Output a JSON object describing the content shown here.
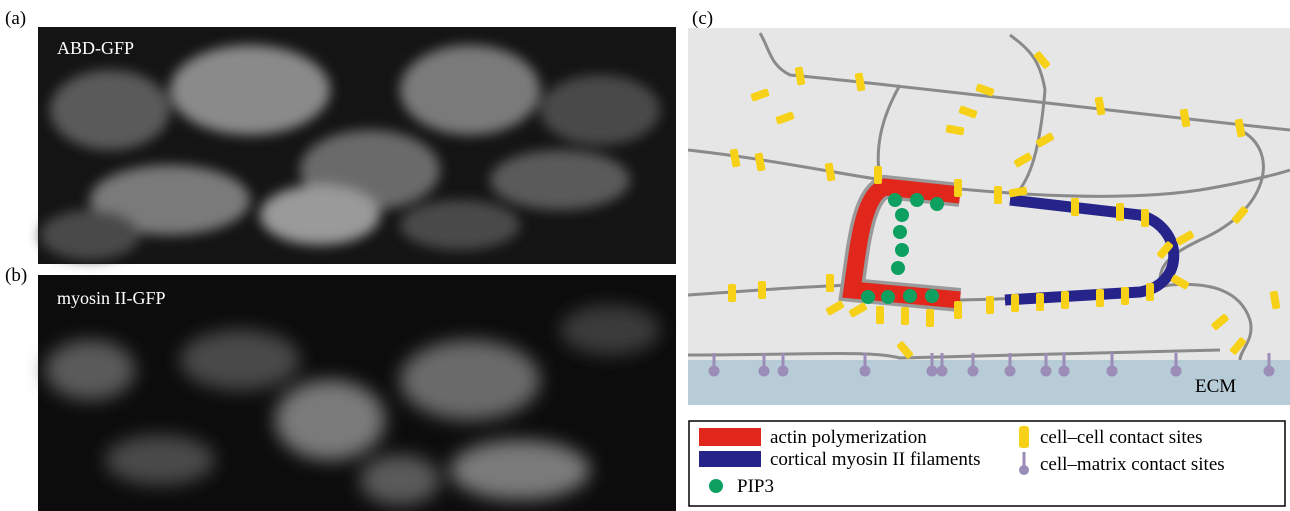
{
  "panels": [
    {
      "label": "(a)",
      "image_label": "ABD-GFP"
    },
    {
      "label": "(b)",
      "image_label": "myosin II-GFP"
    },
    {
      "label": "(c)",
      "ecm_label": "ECM",
      "legend": [
        "actin polymerization",
        "cortical myosin II filaments",
        "PIP3",
        "cell–cell contact sites",
        "cell–matrix contact sites"
      ]
    }
  ]
}
